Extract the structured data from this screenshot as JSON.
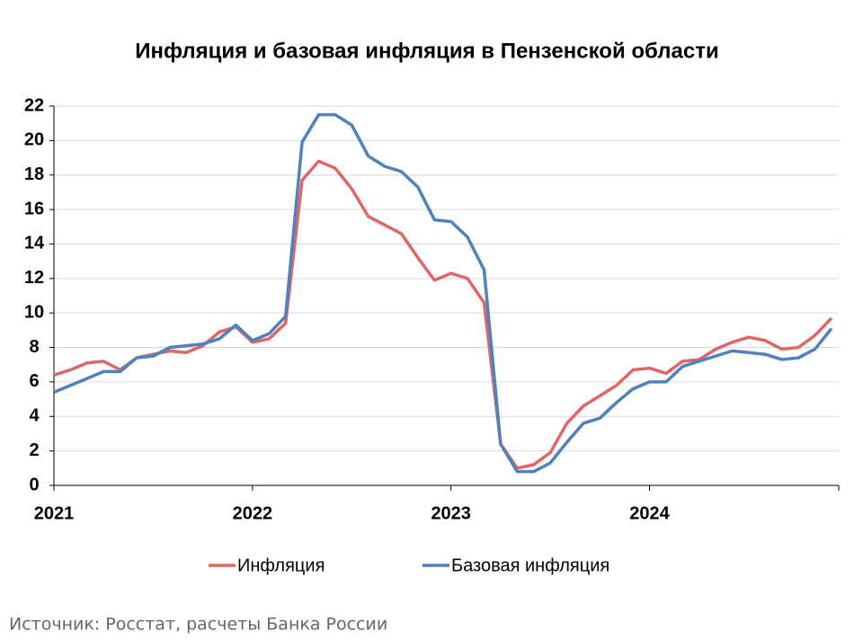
{
  "chart_data": {
    "type": "line",
    "title": "Инфляция и базовая инфляция в Пензенской области",
    "source": "Источник: Росстат, расчеты Банка России",
    "categories": [
      "2021",
      null,
      null,
      null,
      null,
      null,
      null,
      null,
      null,
      null,
      null,
      null,
      "2022",
      null,
      null,
      null,
      null,
      null,
      null,
      null,
      null,
      null,
      null,
      null,
      "2023",
      null,
      null,
      null,
      null,
      null,
      null,
      null,
      null,
      null,
      null,
      null,
      "2024",
      null,
      null,
      null,
      null,
      null,
      null,
      null,
      null,
      null,
      null,
      null
    ],
    "series": [
      {
        "name": "Инфляция",
        "color": "#e06666",
        "values": [
          6.4,
          6.7,
          7.1,
          7.2,
          6.7,
          7.4,
          7.6,
          7.8,
          7.7,
          8.1,
          8.9,
          9.2,
          8.3,
          8.5,
          9.4,
          17.7,
          18.8,
          18.4,
          17.2,
          15.6,
          15.1,
          14.6,
          13.2,
          11.9,
          12.3,
          12.0,
          10.6,
          2.4,
          1.0,
          1.2,
          1.9,
          3.6,
          4.6,
          5.2,
          5.8,
          6.7,
          6.8,
          6.5,
          7.2,
          7.3,
          7.9,
          8.3,
          8.6,
          8.4,
          7.9,
          8.0,
          8.7,
          9.7
        ]
      },
      {
        "name": "Базовая инфляция",
        "color": "#4f81bd",
        "values": [
          5.4,
          5.8,
          6.2,
          6.6,
          6.6,
          7.4,
          7.5,
          8.0,
          8.1,
          8.2,
          8.5,
          9.3,
          8.4,
          8.8,
          9.8,
          19.9,
          21.5,
          21.5,
          20.9,
          19.1,
          18.5,
          18.2,
          17.3,
          15.4,
          15.3,
          14.4,
          12.5,
          2.4,
          0.8,
          0.8,
          1.3,
          2.5,
          3.6,
          3.9,
          4.8,
          5.6,
          6.0,
          6.0,
          6.9,
          7.2,
          7.5,
          7.8,
          7.7,
          7.6,
          7.3,
          7.4,
          7.9,
          9.1
        ]
      }
    ],
    "ylim": [
      0,
      22
    ],
    "yticks": [
      0,
      2,
      4,
      6,
      8,
      10,
      12,
      14,
      16,
      18,
      20,
      22
    ],
    "grid": true,
    "legend": "bottom"
  }
}
